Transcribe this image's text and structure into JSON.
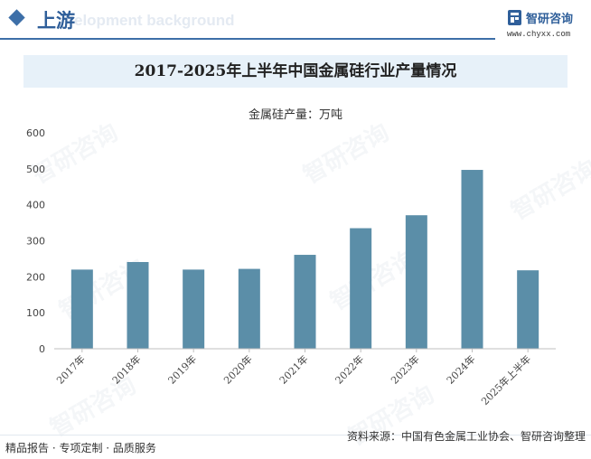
{
  "header": {
    "title": "上游",
    "subtitle": "elopment background",
    "brand_name": "智研咨询",
    "brand_url": "www.chyxx.com",
    "accent": "#3d6fa8"
  },
  "chart_title": "2017-2025年上半年中国金属硅行业产量情况",
  "unit_label": "金属硅产量：万吨",
  "chart_data": {
    "type": "bar",
    "title": "2017-2025年上半年中国金属硅行业产量情况",
    "ylabel": "金属硅产量：万吨",
    "xlabel": "",
    "categories": [
      "2017年",
      "2018年",
      "2019年",
      "2020年",
      "2021年",
      "2022年",
      "2023年",
      "2024年",
      "2025年上半年"
    ],
    "values": [
      220,
      241,
      220,
      222,
      261,
      335,
      371,
      497,
      218
    ],
    "ylim": [
      0,
      600
    ],
    "yticks": [
      0,
      100,
      200,
      300,
      400,
      500,
      600
    ],
    "bar_color": "#5b8ea8",
    "grid": false
  },
  "watermark_text": "智研咨询",
  "footer": {
    "left": "精品报告 · 专项定制 · 品质服务",
    "source": "资料来源：中国有色金属工业协会、智研咨询整理"
  }
}
